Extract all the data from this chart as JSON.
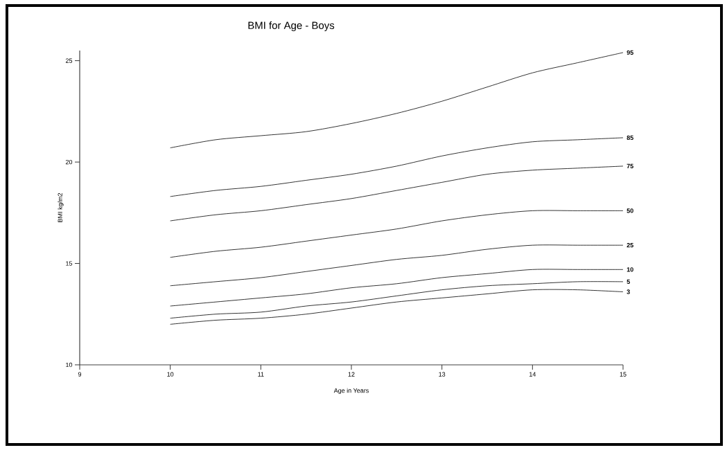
{
  "chart_data": {
    "type": "line",
    "title": "BMI for Age - Boys",
    "xlabel": "Age in Years",
    "ylabel": "BMI kg/m2",
    "x": [
      10,
      10.5,
      11,
      11.5,
      12,
      12.5,
      13,
      13.5,
      14,
      14.5,
      15
    ],
    "xlim": [
      9,
      15
    ],
    "xticks": [
      9,
      10,
      11,
      12,
      13,
      14,
      15
    ],
    "ylim": [
      10,
      25.5
    ],
    "yticks": [
      10,
      15,
      20,
      25
    ],
    "grid": false,
    "legend": false,
    "marker": "none",
    "line_style": "solid",
    "series": [
      {
        "name": "95",
        "color": "#000000",
        "values": [
          20.7,
          21.1,
          21.3,
          21.5,
          21.9,
          22.4,
          23.0,
          23.7,
          24.4,
          24.9,
          25.4
        ]
      },
      {
        "name": "85",
        "color": "#000000",
        "values": [
          18.3,
          18.6,
          18.8,
          19.1,
          19.4,
          19.8,
          20.3,
          20.7,
          21.0,
          21.1,
          21.2
        ]
      },
      {
        "name": "75",
        "color": "#000000",
        "values": [
          17.1,
          17.4,
          17.6,
          17.9,
          18.2,
          18.6,
          19.0,
          19.4,
          19.6,
          19.7,
          19.8
        ]
      },
      {
        "name": "50",
        "color": "#000000",
        "values": [
          15.3,
          15.6,
          15.8,
          16.1,
          16.4,
          16.7,
          17.1,
          17.4,
          17.6,
          17.6,
          17.6
        ]
      },
      {
        "name": "25",
        "color": "#000000",
        "values": [
          13.9,
          14.1,
          14.3,
          14.6,
          14.9,
          15.2,
          15.4,
          15.7,
          15.9,
          15.9,
          15.9
        ]
      },
      {
        "name": "10",
        "color": "#000000",
        "values": [
          12.9,
          13.1,
          13.3,
          13.5,
          13.8,
          14.0,
          14.3,
          14.5,
          14.7,
          14.7,
          14.7
        ]
      },
      {
        "name": "5",
        "color": "#000000",
        "values": [
          12.3,
          12.5,
          12.6,
          12.9,
          13.1,
          13.4,
          13.7,
          13.9,
          14.0,
          14.1,
          14.1
        ]
      },
      {
        "name": "3",
        "color": "#000000",
        "values": [
          12.0,
          12.2,
          12.3,
          12.5,
          12.8,
          13.1,
          13.3,
          13.5,
          13.7,
          13.7,
          13.6
        ]
      }
    ]
  }
}
